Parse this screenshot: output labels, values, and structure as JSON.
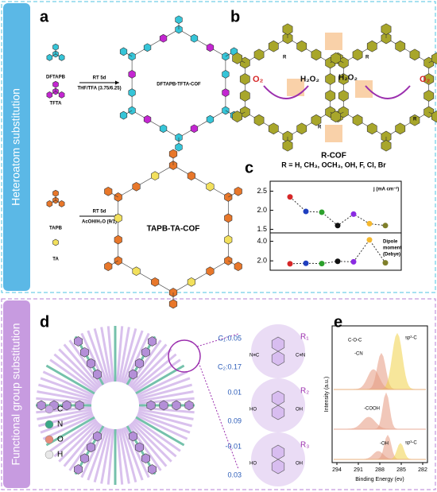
{
  "sections": {
    "top": "Heteroatom substitution",
    "bottom": "Functional group substitution"
  },
  "letters": [
    "a",
    "b",
    "c",
    "d",
    "e"
  ],
  "panel_a": {
    "top": {
      "monomer1": "DFTAPB",
      "monomer2": "TFTA",
      "condition1": "RT 5d",
      "condition2": "THF/TFA (3.75/6.25)",
      "product": "DFTAPB-TFTA-COF"
    },
    "bottom": {
      "monomer1": "TAPB",
      "monomer2": "TA",
      "condition1": "RT 5d",
      "condition2": "AcOH/H₂O (9/1)",
      "product": "TAPB-TA-COF"
    }
  },
  "panel_b": {
    "left_reactant": "O₂",
    "left_product": "H₂O₂",
    "right_reactant": "H₂O₂",
    "right_product": "O₂",
    "substituent": "R",
    "name": "R-COF",
    "formula": "R = H, CH₃, OCH₃, OH, F, Cl, Br"
  },
  "chart_data": [
    {
      "type": "line",
      "ylabel": "j (mA cm⁻²)",
      "colors": [
        "#d62728",
        "#1f3fbf",
        "#2ca02c",
        "#111111",
        "#8a2be2",
        "#f5b82e",
        "#7f7f2a"
      ],
      "values": [
        2.35,
        1.97,
        1.95,
        1.6,
        1.9,
        1.65,
        1.6
      ],
      "ylim": [
        1.45,
        2.72
      ],
      "yticks": [
        1.5,
        {
          "value": 2,
          "label": "2.0"
        },
        2.5
      ]
    },
    {
      "type": "line",
      "ylabel": [
        "Dipole",
        "moment",
        "(Debye)"
      ],
      "colors": [
        "#d62728",
        "#1f3fbf",
        "#2ca02c",
        "#111111",
        "#8a2be2",
        "#f5b82e",
        "#7f7f2a"
      ],
      "values": [
        1.7,
        1.75,
        1.72,
        1.95,
        1.9,
        4.15,
        1.8
      ],
      "ylim": [
        1.2,
        4.7
      ],
      "yticks": [
        {
          "value": 2,
          "label": "2.0"
        },
        {
          "value": 4,
          "label": "4.0"
        }
      ]
    }
  ],
  "panel_d": {
    "legend": [
      {
        "label": "C",
        "color": "#c9a8e6"
      },
      {
        "label": "N",
        "color": "#3aa888"
      },
      {
        "label": "O",
        "color": "#e88b7a"
      },
      {
        "label": "H",
        "color": "#e8e8e8"
      }
    ],
    "molecules": [
      {
        "group": "R₁",
        "charges": [
          "C₁:0.05",
          "C₂:0.17"
        ],
        "atoms": [
          "N≡C",
          "C≡N"
        ]
      },
      {
        "group": "R₂",
        "charges": [
          "0.01",
          "0.09"
        ],
        "atoms": [
          "HO",
          "OH"
        ]
      },
      {
        "group": "R₃",
        "charges": [
          "-0.01",
          "0.03"
        ],
        "atoms": [
          "HO",
          "OH"
        ]
      }
    ]
  },
  "panel_e": {
    "xlabel": "Binding Energy (ev)",
    "ylabel": "Intensity (a.u.)",
    "xticks": [
      "294",
      "291",
      "288",
      "285",
      "282"
    ],
    "peaks": [
      "C-O-C",
      "-CN",
      "sp²-C",
      "-COOH",
      "-OH",
      "sp³-C"
    ]
  }
}
